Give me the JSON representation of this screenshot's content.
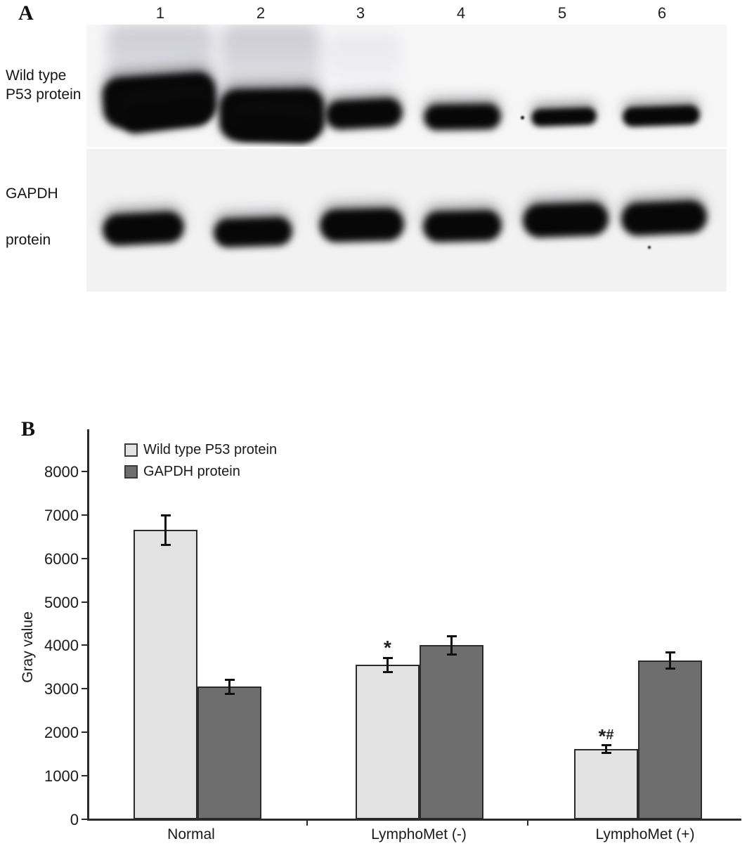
{
  "panel_a": {
    "label": "A",
    "lane_numbers": [
      "1",
      "2",
      "3",
      "4",
      "5",
      "6"
    ],
    "row_label_top": [
      "Wild type",
      "P53 protein"
    ],
    "row_label_bottom": [
      "GAPDH",
      "protein"
    ]
  },
  "panel_b": {
    "label": "B"
  },
  "chart_data": {
    "type": "bar",
    "title": "",
    "xlabel": "",
    "ylabel": "Gray value",
    "categories": [
      "Normal",
      "LymphoMet (-)",
      "LymphoMet (+)"
    ],
    "series": [
      {
        "name": "Wild type P53 protein",
        "color": "#e3e3e3",
        "values": [
          6650,
          3550,
          1620
        ],
        "errors": [
          350,
          170,
          100
        ]
      },
      {
        "name": "GAPDH protein",
        "color": "#6e6e6e",
        "values": [
          3050,
          4000,
          3650
        ],
        "errors": [
          170,
          220,
          200
        ]
      }
    ],
    "annotations": [
      {
        "group": 1,
        "series": 0,
        "text": "*"
      },
      {
        "group": 2,
        "series": 0,
        "text": "*#"
      }
    ],
    "ylim": [
      0,
      8000
    ],
    "ytick_step": 1000,
    "legend_position": "top-left-inside",
    "grid": false,
    "axis_color": "#2b2b2b"
  }
}
